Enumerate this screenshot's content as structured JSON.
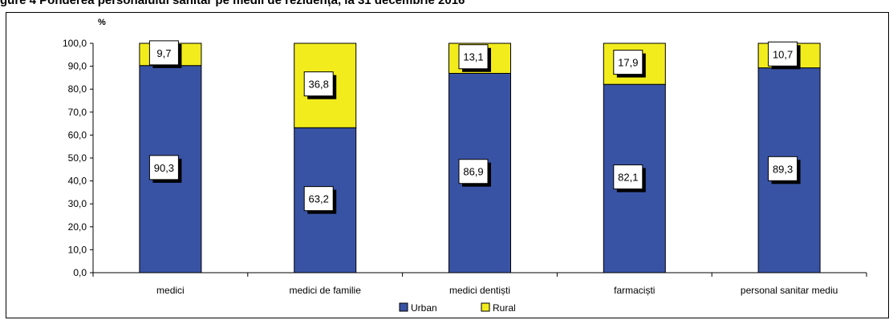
{
  "title": "gure 4 Ponderea personalului sanitar pe medii de rezidență, la 31 decembrie 2016",
  "chart_data": {
    "type": "bar",
    "stacked": true,
    "unit_label": "%",
    "categories": [
      "medici",
      "medici de familie",
      "medici dentiști",
      "farmaciști",
      "personal sanitar mediu"
    ],
    "series": [
      {
        "name": "Urban",
        "color": "#3953a4",
        "values": [
          90.3,
          63.2,
          86.9,
          82.1,
          89.3
        ],
        "labels": [
          "90,3",
          "63,2",
          "86,9",
          "82,1",
          "89,3"
        ]
      },
      {
        "name": "Rural",
        "color": "#f2ec1d",
        "values": [
          9.7,
          36.8,
          13.1,
          17.9,
          10.7
        ],
        "labels": [
          "9,7",
          "36,8",
          "13,1",
          "17,9",
          "10,7"
        ]
      }
    ],
    "yticks": [
      "0,0",
      "10,0",
      "20,0",
      "30,0",
      "40,0",
      "50,0",
      "60,0",
      "70,0",
      "80,0",
      "90,0",
      "100,0"
    ],
    "ylim": [
      0,
      100
    ],
    "grid": false,
    "legend_position": "bottom"
  }
}
